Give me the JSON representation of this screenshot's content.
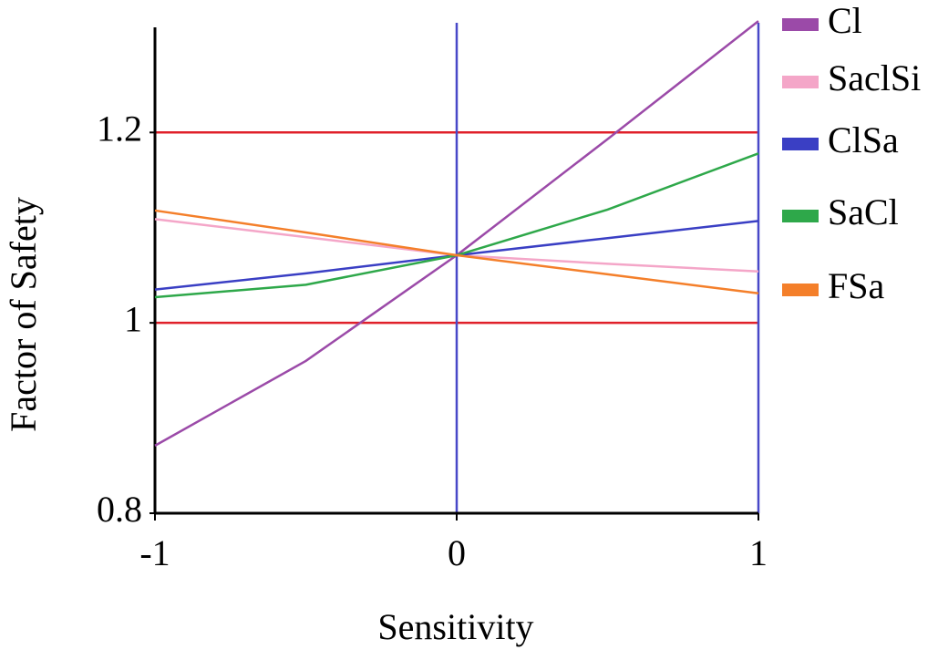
{
  "chart_data": {
    "type": "line",
    "x_label": "Sensitivity",
    "y_label": "Factor of Safety",
    "x": [
      -1,
      -0.5,
      0,
      0.5,
      1
    ],
    "series": [
      {
        "name": "Cl",
        "color": "#9b4aa8",
        "values": [
          0.871,
          0.96,
          1.071,
          1.193,
          1.317
        ]
      },
      {
        "name": "SaclSi",
        "color": "#f4a6c8",
        "values": [
          1.109,
          1.09,
          1.071,
          1.062,
          1.054
        ]
      },
      {
        "name": "ClSa",
        "color": "#3a3fc4",
        "values": [
          1.035,
          1.052,
          1.071,
          1.089,
          1.107
        ]
      },
      {
        "name": "SaCl",
        "color": "#2ea84a",
        "values": [
          1.027,
          1.04,
          1.071,
          1.119,
          1.178
        ]
      },
      {
        "name": "FSa",
        "color": "#f47f2a",
        "values": [
          1.118,
          1.095,
          1.071,
          1.051,
          1.031
        ]
      }
    ],
    "hlines": [
      1,
      1.2
    ],
    "hline_color": "#e0202a",
    "vlines": [
      0,
      1
    ],
    "vline_color": "#4848c8",
    "xlim": [
      -1,
      1
    ],
    "xticks": [
      -1,
      0,
      1
    ],
    "ylim": [
      0.8,
      1.32
    ],
    "yticks": [
      0.8,
      1,
      1.2
    ],
    "legend": "right"
  }
}
